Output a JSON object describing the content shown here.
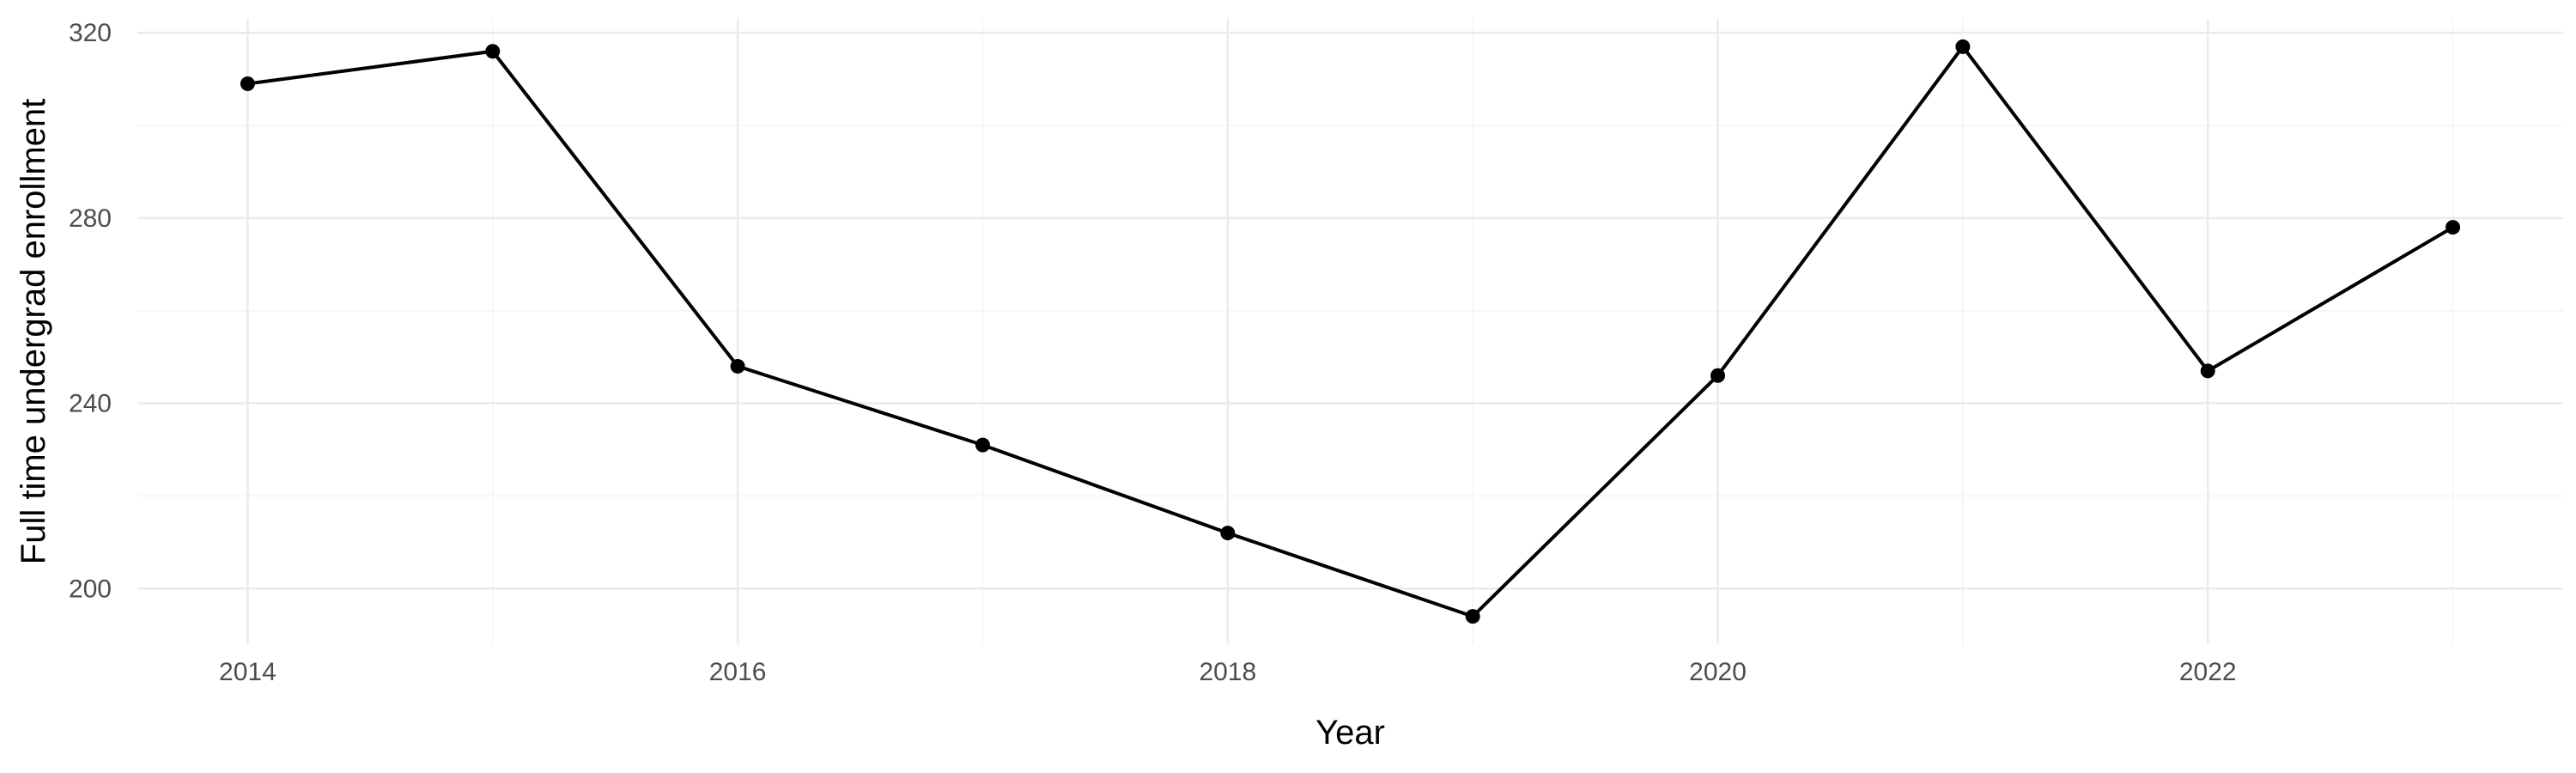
{
  "chart_data": {
    "type": "line",
    "title": "",
    "xlabel": "Year",
    "ylabel": "Full time undergrad enrollment",
    "x": [
      2014,
      2015,
      2016,
      2017,
      2018,
      2019,
      2020,
      2021,
      2022,
      2023
    ],
    "series": [
      {
        "values": [
          309,
          316,
          248,
          231,
          212,
          194,
          246,
          317,
          247,
          278
        ]
      }
    ],
    "xlim": [
      2013.55,
      2023.45
    ],
    "ylim": [
      188,
      323
    ],
    "x_ticks": [
      2014,
      2016,
      2018,
      2020,
      2022
    ],
    "x_tick_labels": [
      "2014",
      "2016",
      "2018",
      "2020",
      "2022"
    ],
    "y_ticks": [
      200,
      240,
      280,
      320
    ],
    "y_tick_labels": [
      "200",
      "240",
      "280",
      "320"
    ],
    "x_minor_ticks": [
      2015,
      2017,
      2019,
      2021,
      2023
    ],
    "y_minor_ticks": [
      220,
      260,
      300
    ],
    "grid": true,
    "legend": "none",
    "line_color": "#000000",
    "grid_color": "#ebebeb"
  }
}
